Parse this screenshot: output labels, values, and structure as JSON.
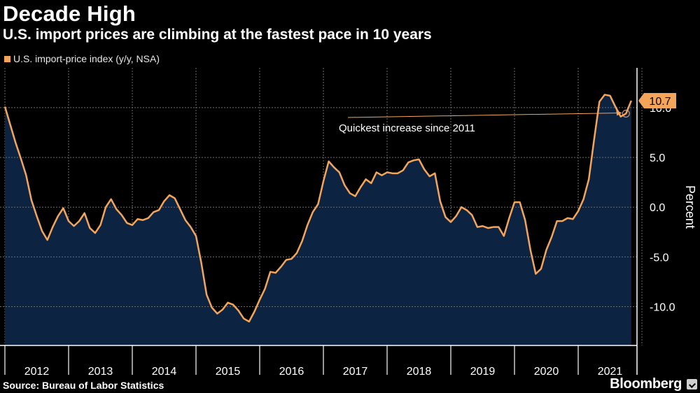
{
  "header": {
    "title": "Decade High",
    "subtitle": "U.S. import prices are climbing at the fastest pace in 10 years"
  },
  "footer": {
    "source": "Source: Bureau of Labor Statistics",
    "brand": "Bloomberg"
  },
  "colors": {
    "line": "#f5a55a",
    "area": "#0c2341",
    "grid": "#6e6e6e",
    "label_box": "#f5a55a"
  },
  "chart_data": {
    "type": "area",
    "title": "Decade High",
    "subtitle": "U.S. import prices are climbing at the fastest pace in 10 years",
    "legend": [
      "U.S. import-price index (y/y, NSA)"
    ],
    "ylabel": "Percent",
    "xlabel": "",
    "ylim": [
      -13.9,
      14
    ],
    "yticks": [
      10.0,
      5.0,
      0.0,
      -5.0,
      -10.0
    ],
    "ytick_labels": [
      "10.0",
      "5.0",
      "0.0",
      "-5.0",
      "-10.0"
    ],
    "xtick_labels": [
      "2012",
      "2013",
      "2014",
      "2015",
      "2016",
      "2017",
      "2018",
      "2019",
      "2020",
      "2021"
    ],
    "x_start_year": 2012,
    "x_start_month": 1,
    "last_value_label": "10.7",
    "annotation": "Quickest increase since 2011",
    "annotation_target_index": 117,
    "grid": true,
    "series": [
      {
        "name": "U.S. import-price index (y/y, NSA)",
        "values": [
          10.1,
          8.3,
          6.5,
          4.9,
          3.2,
          0.7,
          -0.9,
          -2.4,
          -3.3,
          -2.0,
          -0.9,
          -0.1,
          -1.4,
          -1.9,
          -1.4,
          -0.6,
          -2.1,
          -2.6,
          -1.8,
          0.0,
          0.8,
          -0.2,
          -0.8,
          -1.6,
          -1.8,
          -1.2,
          -1.3,
          -1.1,
          -0.5,
          -0.3,
          0.6,
          1.2,
          0.9,
          -0.2,
          -1.3,
          -2.0,
          -2.9,
          -5.6,
          -8.8,
          -10.1,
          -10.7,
          -10.3,
          -9.6,
          -9.8,
          -10.4,
          -11.2,
          -11.5,
          -10.5,
          -9.3,
          -8.2,
          -6.5,
          -6.6,
          -6.0,
          -5.3,
          -5.2,
          -4.6,
          -3.4,
          -1.8,
          -0.5,
          0.3,
          2.6,
          4.6,
          4.0,
          3.5,
          2.2,
          1.4,
          1.1,
          2.0,
          2.8,
          2.4,
          3.5,
          3.2,
          3.5,
          3.4,
          3.4,
          3.7,
          4.5,
          4.7,
          4.8,
          3.8,
          3.1,
          3.4,
          0.6,
          -1.0,
          -1.5,
          -0.9,
          0.0,
          -0.3,
          -0.8,
          -2.0,
          -1.9,
          -2.1,
          -2.0,
          -2.0,
          -2.9,
          -1.1,
          0.5,
          0.5,
          -1.3,
          -4.3,
          -6.7,
          -6.2,
          -4.3,
          -3.0,
          -1.4,
          -1.4,
          -1.1,
          -1.2,
          -0.4,
          0.8,
          2.8,
          6.8,
          10.6,
          11.3,
          11.2,
          10.1,
          9.1,
          9.4,
          10.7
        ]
      }
    ]
  }
}
